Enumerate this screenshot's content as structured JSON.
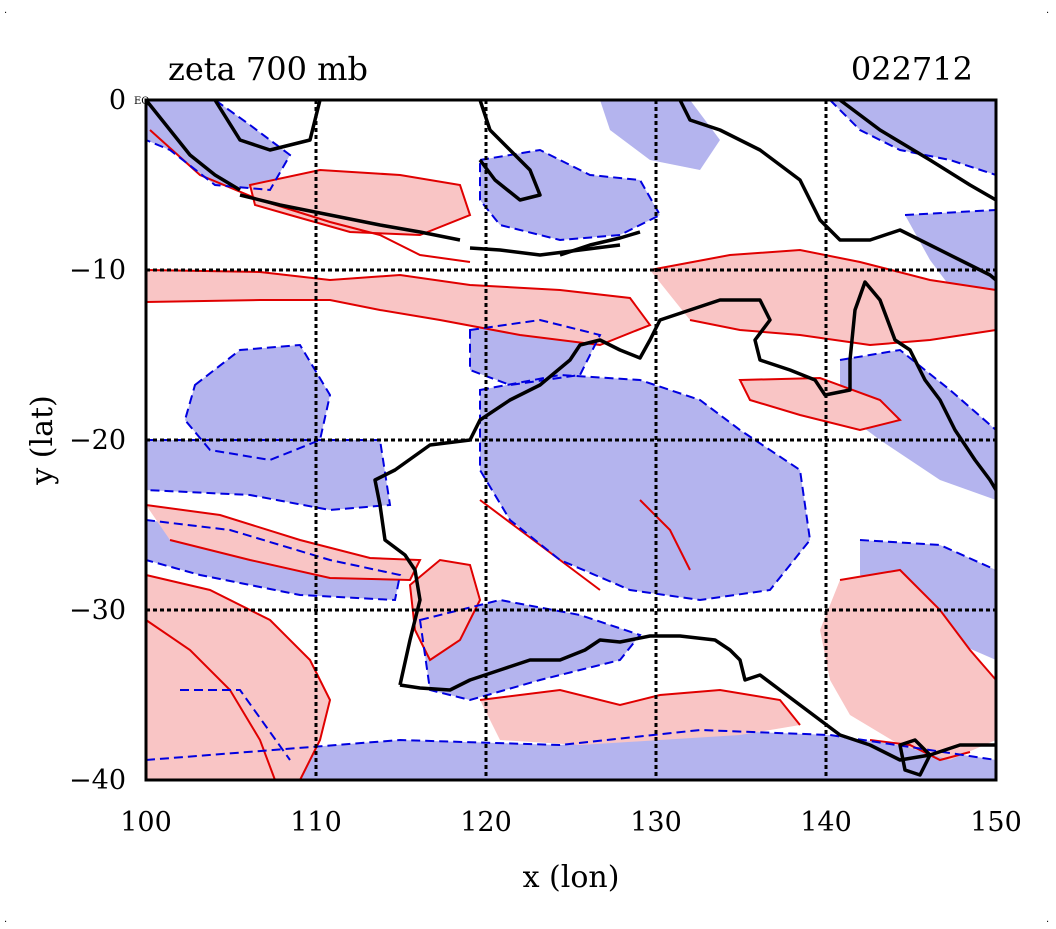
{
  "title_left": "zeta 700 mb",
  "title_right": "022712",
  "corner_label": "EQ",
  "chart_data": {
    "type": "heatmap",
    "variable": "zeta 700 mb",
    "xlabel": "x (lon)",
    "ylabel": "y (lat)",
    "xlim": [
      100,
      150
    ],
    "ylim": [
      -40,
      0
    ],
    "x_ticks": [
      100,
      110,
      120,
      130,
      140,
      150
    ],
    "y_ticks": [
      0,
      -10,
      -20,
      -30,
      -40
    ],
    "x_tick_labels": [
      "100",
      "110",
      "120",
      "130",
      "140",
      "150"
    ],
    "y_tick_labels": [
      "0",
      "−10",
      "−20",
      "−30",
      "−40"
    ],
    "grid": true,
    "colors": {
      "positive_fill": "#f9c5c5",
      "negative_fill": "#b4b4ee",
      "positive_contour": "#e00000",
      "negative_contour": "#0000e0",
      "coastline": "#000000",
      "grid": "#000000"
    }
  }
}
